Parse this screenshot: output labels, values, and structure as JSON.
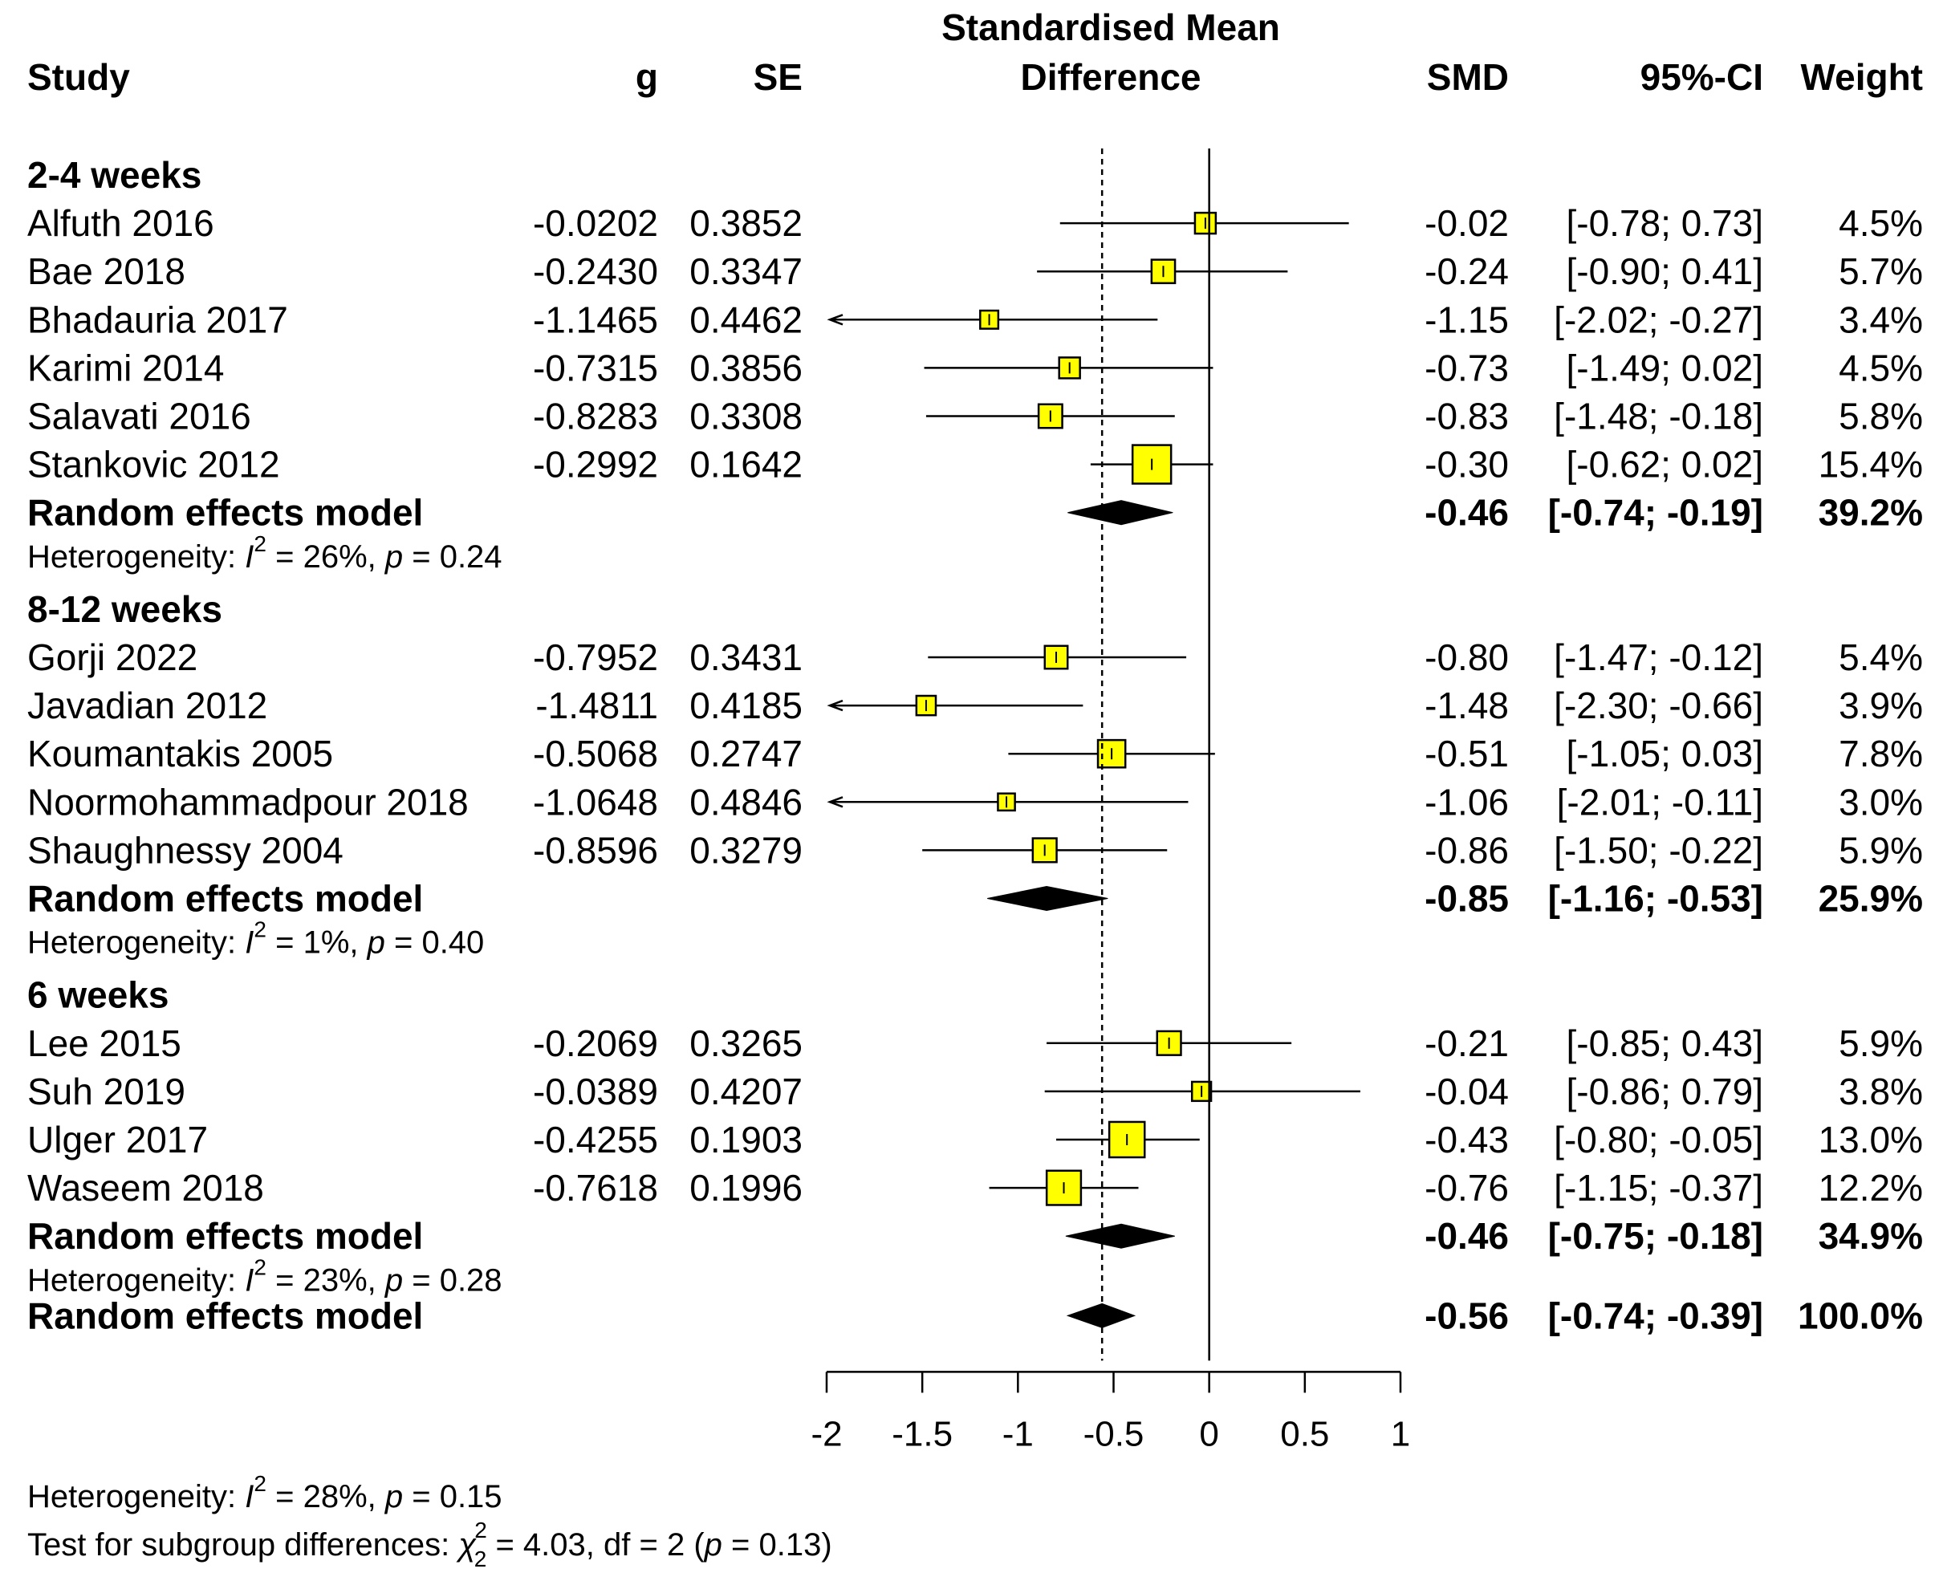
{
  "chart_data": {
    "type": "forest",
    "title_line1": "Standardised Mean",
    "title_line2": "Difference",
    "columns": {
      "study": "Study",
      "g": "g",
      "se": "SE",
      "smd": "SMD",
      "ci": "95%-CI",
      "weight": "Weight"
    },
    "xlim": [
      -2,
      1
    ],
    "ticks": [
      -2,
      -1.5,
      -1,
      -0.5,
      0,
      0.5,
      1
    ],
    "tick_labels": [
      "-2",
      "-1.5",
      "-1",
      "-0.5",
      "0",
      "0.5",
      "1"
    ],
    "overall_estimate": -0.56,
    "groups": [
      {
        "label": "2-4 weeks",
        "studies": [
          {
            "name": "Alfuth 2016",
            "g": "-0.0202",
            "se": "0.3852",
            "smd": "-0.02",
            "ci": "[-0.78;  0.73]",
            "weight": "4.5%",
            "est": -0.02,
            "lo": -0.78,
            "hi": 0.73,
            "w": 4.5
          },
          {
            "name": "Bae 2018",
            "g": "-0.2430",
            "se": "0.3347",
            "smd": "-0.24",
            "ci": "[-0.90;  0.41]",
            "weight": "5.7%",
            "est": -0.24,
            "lo": -0.9,
            "hi": 0.41,
            "w": 5.7
          },
          {
            "name": "Bhadauria 2017",
            "g": "-1.1465",
            "se": "0.4462",
            "smd": "-1.15",
            "ci": "[-2.02; -0.27]",
            "weight": "3.4%",
            "est": -1.15,
            "lo": -2.02,
            "hi": -0.27,
            "w": 3.4
          },
          {
            "name": "Karimi 2014",
            "g": "-0.7315",
            "se": "0.3856",
            "smd": "-0.73",
            "ci": "[-1.49;  0.02]",
            "weight": "4.5%",
            "est": -0.73,
            "lo": -1.49,
            "hi": 0.02,
            "w": 4.5
          },
          {
            "name": "Salavati 2016",
            "g": "-0.8283",
            "se": "0.3308",
            "smd": "-0.83",
            "ci": "[-1.48; -0.18]",
            "weight": "5.8%",
            "est": -0.83,
            "lo": -1.48,
            "hi": -0.18,
            "w": 5.8
          },
          {
            "name": "Stankovic 2012",
            "g": "-0.2992",
            "se": "0.1642",
            "smd": "-0.30",
            "ci": "[-0.62;  0.02]",
            "weight": "15.4%",
            "est": -0.3,
            "lo": -0.62,
            "hi": 0.02,
            "w": 15.4
          }
        ],
        "model": {
          "label": "Random effects model",
          "smd": "-0.46",
          "ci": "[-0.74; -0.19]",
          "weight": "39.2%",
          "est": -0.46,
          "lo": -0.74,
          "hi": -0.19
        },
        "het_prefix": "Heterogeneity: ",
        "het_i": "I",
        "het_sup": "2",
        "het_rest1": " = 26%, ",
        "het_p": "p",
        "het_rest2": " = 0.24"
      },
      {
        "label": "8-12 weeks",
        "studies": [
          {
            "name": "Gorji 2022",
            "g": "-0.7952",
            "se": "0.3431",
            "smd": "-0.80",
            "ci": "[-1.47; -0.12]",
            "weight": "5.4%",
            "est": -0.8,
            "lo": -1.47,
            "hi": -0.12,
            "w": 5.4
          },
          {
            "name": "Javadian 2012",
            "g": "-1.4811",
            "se": "0.4185",
            "smd": "-1.48",
            "ci": "[-2.30; -0.66]",
            "weight": "3.9%",
            "est": -1.48,
            "lo": -2.3,
            "hi": -0.66,
            "w": 3.9
          },
          {
            "name": "Koumantakis 2005",
            "g": "-0.5068",
            "se": "0.2747",
            "smd": "-0.51",
            "ci": "[-1.05;  0.03]",
            "weight": "7.8%",
            "est": -0.51,
            "lo": -1.05,
            "hi": 0.03,
            "w": 7.8
          },
          {
            "name": "Noormohammadpour 2018",
            "g": "-1.0648",
            "se": "0.4846",
            "smd": "-1.06",
            "ci": "[-2.01; -0.11]",
            "weight": "3.0%",
            "est": -1.06,
            "lo": -2.01,
            "hi": -0.11,
            "w": 3.0
          },
          {
            "name": "Shaughnessy 2004",
            "g": "-0.8596",
            "se": "0.3279",
            "smd": "-0.86",
            "ci": "[-1.50; -0.22]",
            "weight": "5.9%",
            "est": -0.86,
            "lo": -1.5,
            "hi": -0.22,
            "w": 5.9
          }
        ],
        "model": {
          "label": "Random effects model",
          "smd": "-0.85",
          "ci": "[-1.16; -0.53]",
          "weight": "25.9%",
          "est": -0.85,
          "lo": -1.16,
          "hi": -0.53
        },
        "het_prefix": "Heterogeneity: ",
        "het_i": "I",
        "het_sup": "2",
        "het_rest1": " = 1%, ",
        "het_p": "p",
        "het_rest2": " = 0.40"
      },
      {
        "label": "6 weeks",
        "studies": [
          {
            "name": "Lee 2015",
            "g": "-0.2069",
            "se": "0.3265",
            "smd": "-0.21",
            "ci": "[-0.85;  0.43]",
            "weight": "5.9%",
            "est": -0.21,
            "lo": -0.85,
            "hi": 0.43,
            "w": 5.9
          },
          {
            "name": "Suh 2019",
            "g": "-0.0389",
            "se": "0.4207",
            "smd": "-0.04",
            "ci": "[-0.86;  0.79]",
            "weight": "3.8%",
            "est": -0.04,
            "lo": -0.86,
            "hi": 0.79,
            "w": 3.8
          },
          {
            "name": "Ulger 2017",
            "g": "-0.4255",
            "se": "0.1903",
            "smd": "-0.43",
            "ci": "[-0.80; -0.05]",
            "weight": "13.0%",
            "est": -0.43,
            "lo": -0.8,
            "hi": -0.05,
            "w": 13.0
          },
          {
            "name": "Waseem 2018",
            "g": "-0.7618",
            "se": "0.1996",
            "smd": "-0.76",
            "ci": "[-1.15; -0.37]",
            "weight": "12.2%",
            "est": -0.76,
            "lo": -1.15,
            "hi": -0.37,
            "w": 12.2
          }
        ],
        "model": {
          "label": "Random effects model",
          "smd": "-0.46",
          "ci": "[-0.75; -0.18]",
          "weight": "34.9%",
          "est": -0.46,
          "lo": -0.75,
          "hi": -0.18
        },
        "het_prefix": "Heterogeneity: ",
        "het_i": "I",
        "het_sup": "2",
        "het_rest1": " = 23%, ",
        "het_p": "p",
        "het_rest2": " = 0.28"
      }
    ],
    "overall": {
      "label": "Random effects model",
      "smd": "-0.56",
      "ci": "[-0.74; -0.39]",
      "weight": "100.0%",
      "est": -0.56,
      "lo": -0.74,
      "hi": -0.39
    },
    "overall_het": {
      "prefix": "Heterogeneity: ",
      "i": "I",
      "sup": "2",
      "rest1": " = 28%, ",
      "p": "p",
      "rest2": " = 0.15"
    },
    "subgroup_test": {
      "prefix": "Test for subgroup differences: ",
      "chi": "χ",
      "chi_sup": "2",
      "chi_sub": "2",
      "rest1": " = 4.03, df = 2 (",
      "p": "p",
      "rest2": " = 0.13)"
    },
    "colors": {
      "box": "#ffff00",
      "line": "#000000",
      "diamond": "#000000"
    }
  }
}
